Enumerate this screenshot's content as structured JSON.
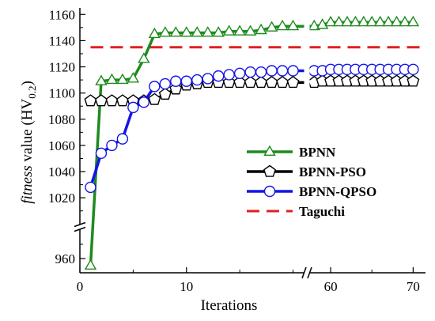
{
  "chart_data": {
    "type": "line",
    "xlabel": "Iterations",
    "ylabel": {
      "prefix_italic": "fitness",
      "suffix": " value (HV",
      "subscript": "0.2",
      "close": ")"
    },
    "x_axis": {
      "segments": [
        {
          "range": [
            0,
            21
          ],
          "ticks": [
            0,
            10
          ]
        },
        {
          "range": [
            57.5,
            71.5
          ],
          "ticks": [
            60,
            70
          ]
        }
      ],
      "break_between": [
        21,
        57.5
      ]
    },
    "y_axis": {
      "segments": [
        {
          "range": [
            950,
            975
          ],
          "ticks": [
            960
          ]
        },
        {
          "range": [
            1005,
            1165
          ],
          "ticks": [
            1020,
            1040,
            1060,
            1080,
            1100,
            1120,
            1140,
            1160
          ]
        }
      ],
      "break_between": [
        975,
        1005
      ]
    },
    "series": [
      {
        "name": "BPNN",
        "color": "#1f8a1f",
        "marker": "triangle",
        "x": [
          1,
          2,
          3,
          4,
          5,
          6,
          7,
          8,
          9,
          10,
          11,
          12,
          13,
          14,
          15,
          16,
          17,
          18,
          19,
          20,
          58,
          59,
          60,
          61,
          62,
          63,
          64,
          65,
          66,
          67,
          68,
          69,
          70
        ],
        "y": [
          955,
          1109,
          1110,
          1110,
          1111,
          1126,
          1145,
          1146,
          1146,
          1146,
          1146,
          1146,
          1146,
          1147,
          1147,
          1147,
          1148,
          1150,
          1151,
          1151,
          1151,
          1152,
          1154,
          1154,
          1154,
          1154,
          1154,
          1154,
          1154,
          1154,
          1154,
          1154,
          1154
        ]
      },
      {
        "name": "BPNN-PSO",
        "color": "#000000",
        "marker": "pentagon",
        "x": [
          1,
          2,
          3,
          4,
          5,
          6,
          7,
          8,
          9,
          10,
          11,
          12,
          13,
          14,
          15,
          16,
          17,
          18,
          19,
          20,
          58,
          59,
          60,
          61,
          62,
          63,
          64,
          65,
          66,
          67,
          68,
          69,
          70
        ],
        "y": [
          1094,
          1094,
          1094,
          1094,
          1094,
          1094,
          1095,
          1099,
          1103,
          1106,
          1107,
          1108,
          1108,
          1108,
          1108,
          1108,
          1108,
          1108,
          1108,
          1108,
          1108,
          1109,
          1109,
          1109,
          1109,
          1109,
          1109,
          1109,
          1109,
          1109,
          1109,
          1109,
          1109
        ]
      },
      {
        "name": "BPNN-QPSO",
        "color": "#1414e6",
        "marker": "circle",
        "x": [
          1,
          2,
          3,
          4,
          5,
          6,
          7,
          8,
          9,
          10,
          11,
          12,
          13,
          14,
          15,
          16,
          17,
          18,
          19,
          20,
          58,
          59,
          60,
          61,
          62,
          63,
          64,
          65,
          66,
          67,
          68,
          69,
          70
        ],
        "y": [
          1028,
          1054,
          1060,
          1065,
          1089,
          1093,
          1105,
          1107,
          1109,
          1109,
          1110,
          1111,
          1113,
          1114,
          1115,
          1116,
          1116,
          1117,
          1117,
          1117,
          1117,
          1117,
          1118,
          1118,
          1118,
          1118,
          1118,
          1118,
          1118,
          1118,
          1118,
          1118,
          1118
        ]
      },
      {
        "name": "Taguchi",
        "color": "#e02020",
        "marker": "none",
        "dashed": true,
        "x": [
          1,
          71
        ],
        "y": [
          1135,
          1135
        ]
      }
    ],
    "legend_position": "center-right",
    "grid": false
  }
}
